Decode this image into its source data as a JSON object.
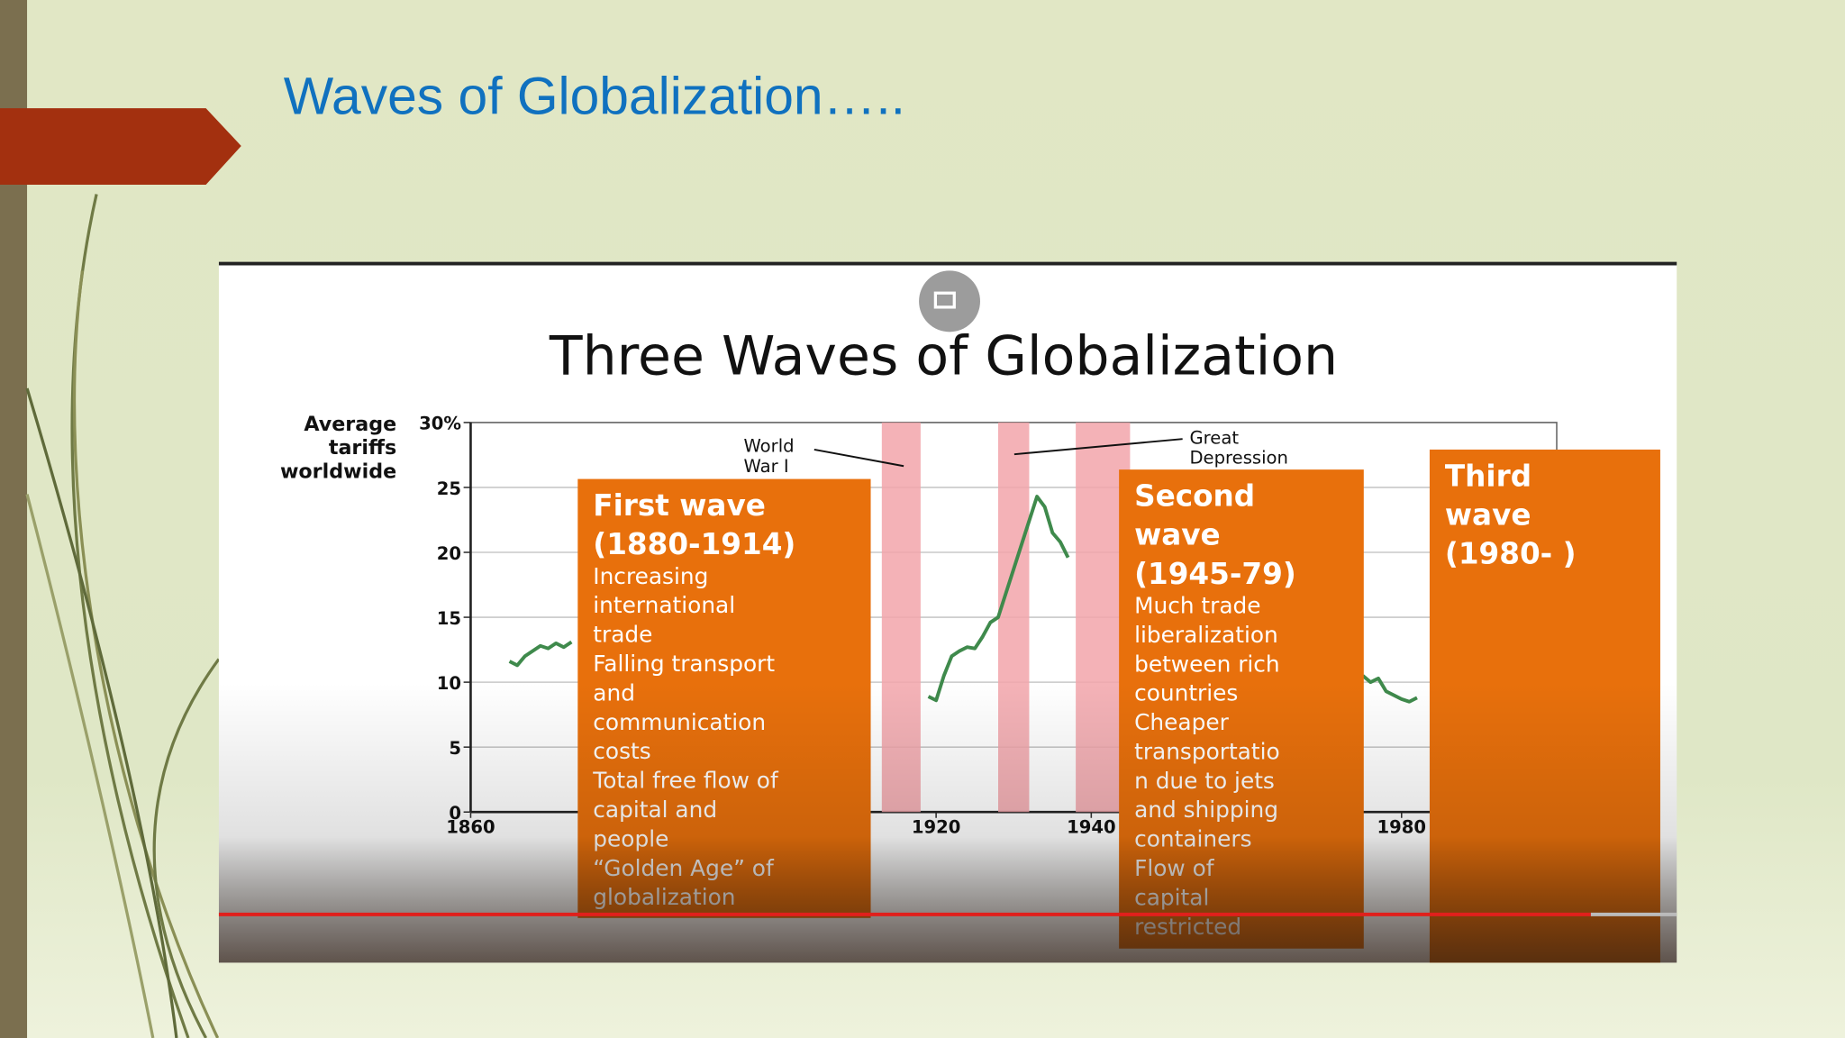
{
  "slide_title": "Waves of Globalization…..",
  "chart_data": {
    "type": "line",
    "title": "Three Waves of Globalization",
    "ylabel": [
      "Average",
      "tariffs",
      "worldwide"
    ],
    "x": [
      1865,
      1866,
      1867,
      1868,
      1869,
      1870,
      1871,
      1872,
      1873,
      1874,
      1919,
      1920,
      1921,
      1922,
      1923,
      1924,
      1925,
      1926,
      1927,
      1928,
      1933,
      1934,
      1935,
      1936,
      1937,
      1938,
      1975,
      1976,
      1977,
      1978,
      1979,
      1980,
      1981,
      1982
    ],
    "values": [
      11.6,
      11.3,
      12.0,
      12.4,
      12.8,
      12.6,
      13.0,
      12.7,
      13.1,
      null,
      8.9,
      8.6,
      10.5,
      12.0,
      12.4,
      12.7,
      12.6,
      13.5,
      14.6,
      15.0,
      24.3,
      23.5,
      21.5,
      20.8,
      19.6,
      null,
      10.5,
      10.0,
      10.3,
      9.3,
      9.0,
      8.7,
      8.5,
      8.8
    ],
    "color": "#3f8a4c",
    "xlim": [
      1860,
      2000
    ],
    "xticks": [
      1860,
      1920,
      1940,
      1980
    ],
    "ylim": [
      0,
      30
    ],
    "yticks": [
      0,
      5,
      10,
      15,
      20,
      25,
      {
        "value": 30,
        "label": "30%"
      }
    ],
    "grid": true,
    "periods": [
      [
        1913,
        1918
      ],
      [
        1928,
        1932
      ],
      [
        1938,
        1945
      ]
    ],
    "period_color": "#f2a4aa",
    "annotations": [
      {
        "lines": [
          "World",
          "War I"
        ]
      },
      {
        "lines": [
          "Great",
          "Depression"
        ]
      }
    ],
    "waves": [
      {
        "title_lines": [
          "First wave",
          "(1880-1914)"
        ],
        "body_lines": [
          "Increasing",
          "international",
          "trade",
          "Falling transport",
          "and",
          "communication",
          "costs",
          "Total free flow of",
          "capital and",
          "people",
          "“Golden Age” of",
          "globalization"
        ]
      },
      {
        "title_lines": [
          "Second",
          "wave",
          "(1945-79)"
        ],
        "body_lines": [
          "Much trade",
          "liberalization",
          "between rich",
          "countries",
          "Cheaper",
          "transportatio",
          "n due to jets",
          "and shipping",
          "containers",
          "Flow of",
          "capital",
          "restricted"
        ]
      },
      {
        "title_lines": [
          "Third",
          "wave",
          "(1980- )"
        ],
        "body_lines": []
      }
    ],
    "wave_color": "#e8700c"
  }
}
